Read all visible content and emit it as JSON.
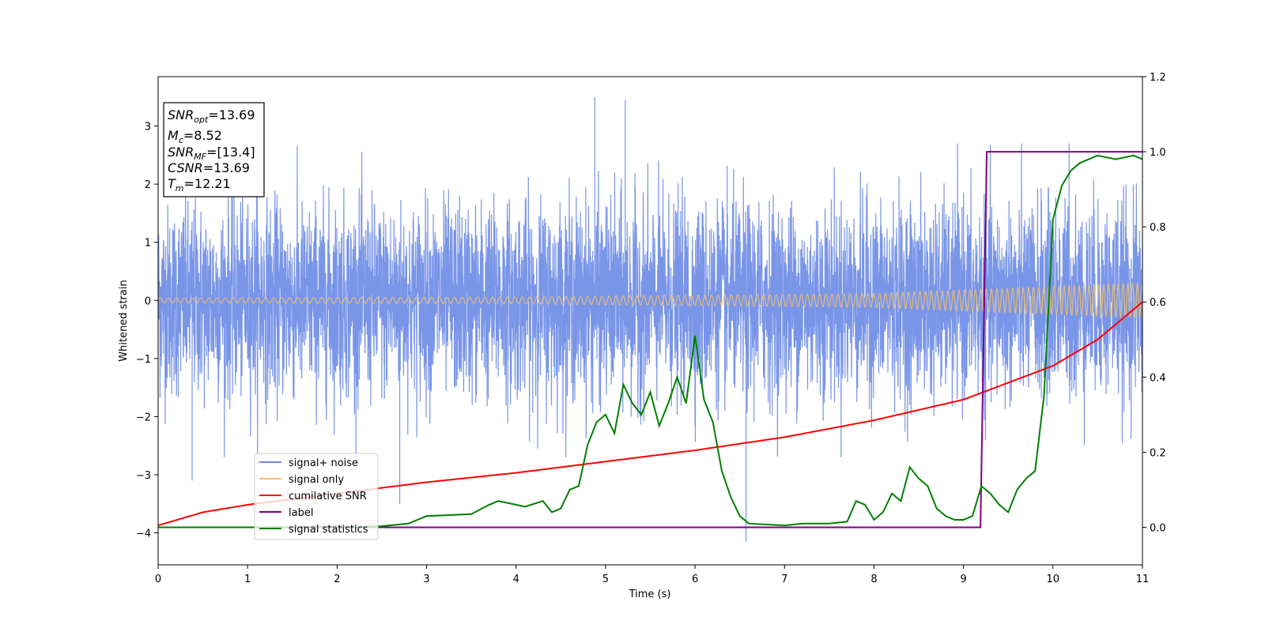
{
  "chart_data": {
    "type": "line",
    "xlabel": "Time (s)",
    "ylabel": "Whitened strain",
    "xlim": [
      0,
      11
    ],
    "ylim_left": [
      -4.55,
      3.85
    ],
    "ylim_right": [
      -0.1,
      1.2
    ],
    "x_ticks": [
      "0",
      "1",
      "2",
      "3",
      "4",
      "5",
      "6",
      "7",
      "8",
      "9",
      "10",
      "11"
    ],
    "y_ticks_left": [
      "−4",
      "−3",
      "−2",
      "−1",
      "0",
      "1",
      "2",
      "3"
    ],
    "y_ticks_right": [
      "0.0",
      "0.2",
      "0.4",
      "0.6",
      "0.8",
      "1.0",
      "1.2"
    ],
    "legend_position": "lower-left",
    "annotation": {
      "snr_opt": {
        "sym": "SNR",
        "sub": "opt",
        "val": "=13.69"
      },
      "mc": {
        "sym": "M",
        "sub": "c",
        "val": "=8.52"
      },
      "snr_mf": {
        "sym": "SNR",
        "sub": "MF",
        "val": "=[13.4]"
      },
      "csnr": {
        "sym": "CSNR",
        "val": "=13.69"
      },
      "tm": {
        "sym": "T",
        "sub": "m",
        "val": "=12.21"
      }
    },
    "series": [
      {
        "name": "signal+ noise",
        "axis": "left",
        "color": "#6a8ae6",
        "style": "noise band, approx. ±1.8 typical, peaks near 3.5 and −4.1",
        "typical_amplitude": 1.8,
        "peaks": [
          [
            0.38,
            -3.1
          ],
          [
            1.1,
            2.9
          ],
          [
            2.7,
            -3.5
          ],
          [
            4.88,
            3.5
          ],
          [
            5.22,
            3.45
          ],
          [
            6.57,
            -4.15
          ],
          [
            10.18,
            2.7
          ]
        ]
      },
      {
        "name": "signal only",
        "axis": "left",
        "color": "#f5c26b",
        "style": "chirp oscillation",
        "amplitude": [
          [
            0,
            0.04
          ],
          [
            4,
            0.06
          ],
          [
            8,
            0.12
          ],
          [
            11,
            0.3
          ]
        ]
      },
      {
        "name": "cumilative SNR",
        "axis": "right",
        "color": "#ff0000",
        "points": [
          [
            0,
            0.005
          ],
          [
            0.5,
            0.04
          ],
          [
            1,
            0.06
          ],
          [
            2,
            0.09
          ],
          [
            3,
            0.12
          ],
          [
            4,
            0.145
          ],
          [
            5,
            0.175
          ],
          [
            6,
            0.205
          ],
          [
            7,
            0.24
          ],
          [
            8,
            0.285
          ],
          [
            9,
            0.34
          ],
          [
            10,
            0.43
          ],
          [
            10.5,
            0.5
          ],
          [
            11,
            0.6
          ]
        ]
      },
      {
        "name": "label",
        "axis": "right",
        "color": "#800080",
        "points": [
          [
            0,
            0
          ],
          [
            9.19,
            0
          ],
          [
            9.26,
            1.0
          ],
          [
            11,
            1.0
          ]
        ]
      },
      {
        "name": "signal statistics",
        "axis": "right",
        "color": "#008000",
        "points": [
          [
            0,
            0.0
          ],
          [
            1.0,
            0.0
          ],
          [
            2.0,
            0.002
          ],
          [
            2.5,
            0.003
          ],
          [
            2.8,
            0.01
          ],
          [
            3.0,
            0.03
          ],
          [
            3.5,
            0.035
          ],
          [
            3.7,
            0.06
          ],
          [
            3.8,
            0.07
          ],
          [
            4.0,
            0.06
          ],
          [
            4.1,
            0.055
          ],
          [
            4.3,
            0.07
          ],
          [
            4.4,
            0.04
          ],
          [
            4.5,
            0.05
          ],
          [
            4.6,
            0.1
          ],
          [
            4.7,
            0.11
          ],
          [
            4.8,
            0.22
          ],
          [
            4.9,
            0.28
          ],
          [
            5.0,
            0.3
          ],
          [
            5.1,
            0.25
          ],
          [
            5.2,
            0.38
          ],
          [
            5.3,
            0.33
          ],
          [
            5.4,
            0.3
          ],
          [
            5.5,
            0.36
          ],
          [
            5.6,
            0.27
          ],
          [
            5.7,
            0.33
          ],
          [
            5.8,
            0.4
          ],
          [
            5.9,
            0.33
          ],
          [
            6.0,
            0.51
          ],
          [
            6.1,
            0.34
          ],
          [
            6.2,
            0.28
          ],
          [
            6.3,
            0.15
          ],
          [
            6.4,
            0.08
          ],
          [
            6.5,
            0.03
          ],
          [
            6.6,
            0.01
          ],
          [
            7.0,
            0.005
          ],
          [
            7.2,
            0.01
          ],
          [
            7.5,
            0.01
          ],
          [
            7.7,
            0.015
          ],
          [
            7.8,
            0.07
          ],
          [
            7.9,
            0.06
          ],
          [
            8.0,
            0.02
          ],
          [
            8.1,
            0.04
          ],
          [
            8.2,
            0.09
          ],
          [
            8.3,
            0.07
          ],
          [
            8.4,
            0.16
          ],
          [
            8.5,
            0.13
          ],
          [
            8.6,
            0.11
          ],
          [
            8.7,
            0.05
          ],
          [
            8.8,
            0.03
          ],
          [
            8.9,
            0.02
          ],
          [
            9.0,
            0.02
          ],
          [
            9.1,
            0.03
          ],
          [
            9.2,
            0.11
          ],
          [
            9.3,
            0.09
          ],
          [
            9.4,
            0.06
          ],
          [
            9.5,
            0.04
          ],
          [
            9.6,
            0.1
          ],
          [
            9.7,
            0.13
          ],
          [
            9.8,
            0.15
          ],
          [
            9.9,
            0.35
          ],
          [
            10.0,
            0.82
          ],
          [
            10.1,
            0.91
          ],
          [
            10.2,
            0.95
          ],
          [
            10.3,
            0.97
          ],
          [
            10.5,
            0.99
          ],
          [
            10.7,
            0.98
          ],
          [
            10.9,
            0.99
          ],
          [
            11.0,
            0.98
          ]
        ]
      }
    ]
  }
}
